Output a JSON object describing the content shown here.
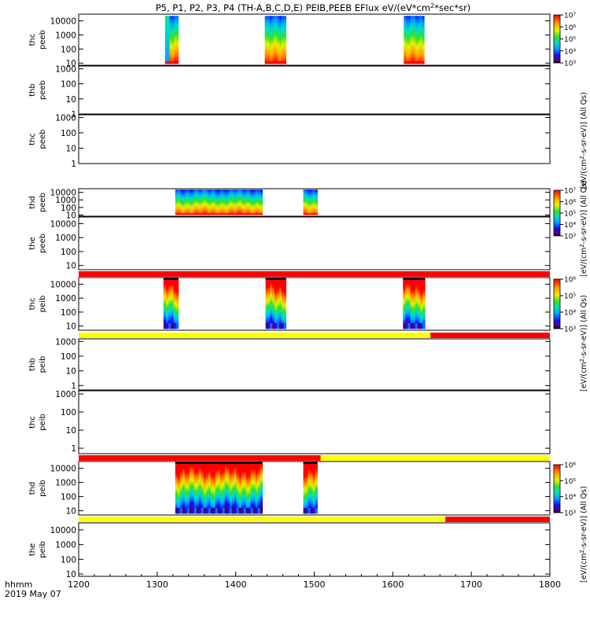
{
  "chart_data": {
    "type": "heatmap",
    "title": "P5, P1, P2, P3, P4 (TH-A,B,C,D,E) PEIB,PEEB EFlux eV/(eV*cm²*sec*sr)",
    "title_main": "P5, P1, P2, P3, P4 (TH-A,B,C,D,E) PEIB,PEEB EFlux eV/(eV*cm",
    "title_sup": "2",
    "title_end": "*sec*sr)",
    "x_label": "hhmm",
    "date_label": "2019 May 07",
    "xlim": [
      1200,
      1800
    ],
    "x_ticks": [
      "1200",
      "1300",
      "1400",
      "1500",
      "1600",
      "1700",
      "1800"
    ],
    "y_ticks_electron": [
      "10",
      "100",
      "1000",
      "10000"
    ],
    "y_ticks_empty": [
      "1",
      "10",
      "100",
      "1000"
    ],
    "colorbars": [
      {
        "label_pre": "[eV/(cm",
        "label_sup": "2",
        "label_post": "-s-sr-eV)] (All Qs)",
        "ticks": [
          "10³",
          "10⁴",
          "10⁵",
          "10⁶",
          "10⁷"
        ],
        "range_log": [
          3,
          7
        ]
      },
      {
        "label_pre": "[eV/(cm",
        "label_sup": "2",
        "label_post": "-s-sr-eV)] (All Qs)",
        "ticks": [
          "10³",
          "10⁴",
          "10⁵",
          "10⁶",
          "10⁷"
        ],
        "range_log": [
          3,
          7
        ]
      },
      {
        "label_pre": "[eV/(cm",
        "label_sup": "2",
        "label_post": "-s-sr-eV)] (All Qs)",
        "ticks": [
          "10³",
          "10⁴",
          "10⁵",
          "10⁶"
        ],
        "range_log": [
          3,
          6
        ]
      },
      {
        "label_pre": "[eV/(cm",
        "label_sup": "2",
        "label_post": "-s-sr-eV)] (All Qs)",
        "ticks": [
          "10³",
          "10⁴",
          "10⁵",
          "10⁶"
        ],
        "range_log": [
          3,
          6
        ]
      }
    ],
    "panels": [
      {
        "probe": "thc",
        "product": "peeb",
        "yrange": [
          7,
          30000
        ],
        "ticks": "electron",
        "kind": "electron",
        "blocks": [
          {
            "start": 1310,
            "end": 1327,
            "front": true
          },
          {
            "start": 1437,
            "end": 1464
          },
          {
            "start": 1614,
            "end": 1640
          }
        ]
      },
      {
        "probe": "thb",
        "product": "peeb",
        "yrange": [
          1,
          1500
        ],
        "ticks": "empty",
        "kind": "empty",
        "blocks": []
      },
      {
        "probe": "thc",
        "product": "peeb",
        "yrange": [
          1,
          1500
        ],
        "ticks": "empty",
        "kind": "empty",
        "blocks": []
      },
      {
        "probe": "thd",
        "product": "peeb",
        "yrange": [
          7,
          30000
        ],
        "ticks": "electron",
        "kind": "electron",
        "blocks": [
          {
            "start": 1323,
            "end": 1434
          },
          {
            "start": 1486,
            "end": 1504
          }
        ]
      },
      {
        "probe": "the",
        "product": "peeb",
        "yrange": [
          5,
          30000
        ],
        "ticks": "electron",
        "kind": "empty",
        "blocks": []
      },
      {
        "probe": "thc",
        "product": "peib",
        "yrange": [
          5,
          30000
        ],
        "ticks": "electron",
        "kind": "ion",
        "blocks": [
          {
            "start": 1308,
            "end": 1327
          },
          {
            "start": 1438,
            "end": 1464
          },
          {
            "start": 1613,
            "end": 1641
          }
        ]
      },
      {
        "probe": "thb",
        "product": "peib",
        "yrange": [
          0.5,
          1500
        ],
        "ticks": "empty",
        "kind": "empty",
        "blocks": []
      },
      {
        "probe": "thc",
        "product": "peib",
        "yrange": [
          0.5,
          1500
        ],
        "ticks": "empty",
        "kind": "empty",
        "blocks": []
      },
      {
        "probe": "thd",
        "product": "peib",
        "yrange": [
          5,
          30000
        ],
        "ticks": "electron",
        "kind": "ion",
        "blocks": [
          {
            "start": 1323,
            "end": 1434
          },
          {
            "start": 1486,
            "end": 1504
          }
        ]
      },
      {
        "probe": "the",
        "product": "peib",
        "yrange": [
          7,
          30000
        ],
        "ticks": "electron",
        "kind": "empty",
        "blocks": []
      }
    ],
    "status_bars": [
      {
        "segments": [
          {
            "start": 1200,
            "end": 1800,
            "color": "#ff0000"
          }
        ]
      },
      {
        "segments": [
          {
            "start": 1200,
            "end": 1648,
            "color": "#ffff00"
          },
          {
            "start": 1648,
            "end": 1800,
            "color": "#ff0000"
          }
        ]
      },
      {
        "segments": [
          {
            "start": 1200,
            "end": 1508,
            "color": "#ff0000"
          },
          {
            "start": 1508,
            "end": 1800,
            "color": "#ffff00"
          }
        ]
      },
      {
        "segments": [
          {
            "start": 1200,
            "end": 1667,
            "color": "#ffff00"
          },
          {
            "start": 1667,
            "end": 1800,
            "color": "#ff0000"
          }
        ]
      }
    ]
  }
}
